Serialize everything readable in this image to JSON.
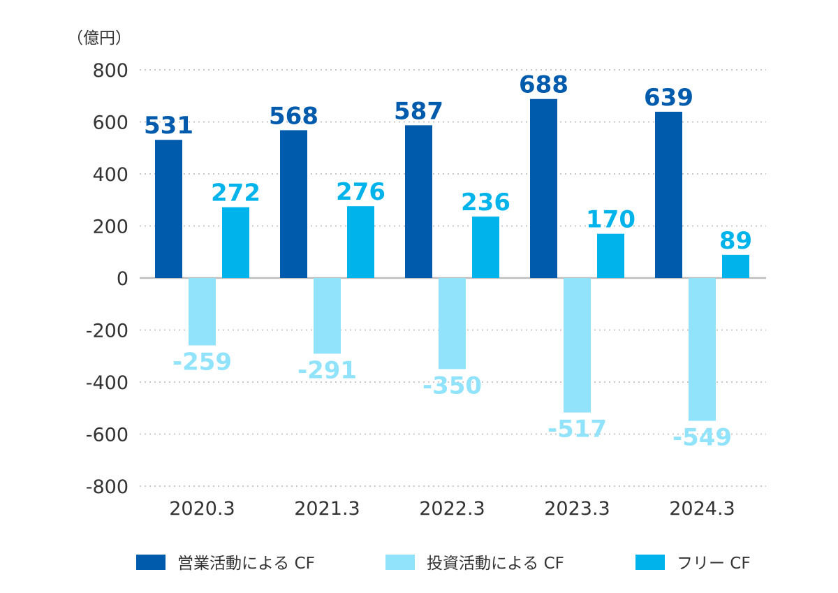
{
  "chart_data": {
    "type": "bar",
    "unit_label": "（億円）",
    "categories": [
      "2020.3",
      "2021.3",
      "2022.3",
      "2023.3",
      "2024.3"
    ],
    "series": [
      {
        "name": "営業活動による CF",
        "values": [
          531,
          568,
          587,
          688,
          639
        ],
        "color": "#005bac"
      },
      {
        "name": "投資活動による CF",
        "values": [
          -259,
          -291,
          -350,
          -517,
          -549
        ],
        "color": "#91e3fb"
      },
      {
        "name": "フリー CF",
        "values": [
          272,
          276,
          236,
          170,
          89
        ],
        "color": "#00b4eb"
      }
    ],
    "ylim": [
      -800,
      800
    ],
    "yticks": [
      800,
      600,
      400,
      200,
      0,
      -200,
      -400,
      -600,
      -800
    ],
    "grid": true,
    "legend_position": "bottom"
  }
}
